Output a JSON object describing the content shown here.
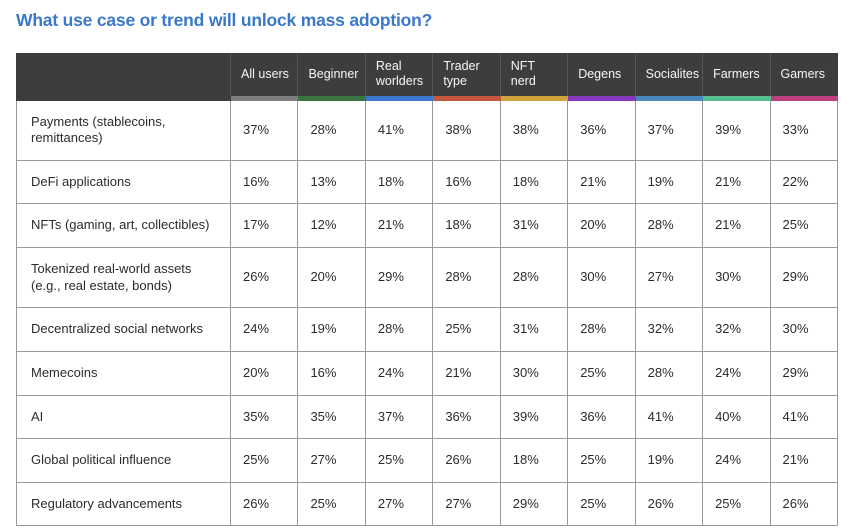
{
  "title": "What use case or trend will unlock mass adoption?",
  "colors": {
    "title_text": "#3a78c8",
    "header_background": "#3d3d3d",
    "header_text": "#f7f7f7",
    "cell_border": "#999999",
    "body_text": "#2b2b2b"
  },
  "chart_data": {
    "type": "table",
    "title": "What use case or trend will unlock mass adoption?",
    "unit": "%",
    "corner_label": "",
    "columns": [
      {
        "label": "All users",
        "accent_color": "#7d7d7d"
      },
      {
        "label": "Beginner",
        "accent_color": "#3a7340"
      },
      {
        "label": "Real worlders",
        "accent_color": "#3c78cd"
      },
      {
        "label": "Trader type",
        "accent_color": "#c5573f"
      },
      {
        "label": "NFT nerd",
        "accent_color": "#cfa43a"
      },
      {
        "label": "Degens",
        "accent_color": "#8639bd"
      },
      {
        "label": "Socialites",
        "accent_color": "#4a87bb"
      },
      {
        "label": "Farmers",
        "accent_color": "#56bd8e"
      },
      {
        "label": "Gamers",
        "accent_color": "#bf3f7c"
      }
    ],
    "rows": [
      {
        "label": "Payments (stablecoins, remittances)",
        "values": [
          37,
          28,
          41,
          38,
          38,
          36,
          37,
          39,
          33
        ]
      },
      {
        "label": "DeFi applications",
        "values": [
          16,
          13,
          18,
          16,
          18,
          21,
          19,
          21,
          22
        ]
      },
      {
        "label": "NFTs (gaming, art, collectibles)",
        "values": [
          17,
          12,
          21,
          18,
          31,
          20,
          28,
          21,
          25
        ]
      },
      {
        "label": "Tokenized real-world assets (e.g., real estate, bonds)",
        "values": [
          26,
          20,
          29,
          28,
          28,
          30,
          27,
          30,
          29
        ]
      },
      {
        "label": "Decentralized social networks",
        "values": [
          24,
          19,
          28,
          25,
          31,
          28,
          32,
          32,
          30
        ]
      },
      {
        "label": "Memecoins",
        "values": [
          20,
          16,
          24,
          21,
          30,
          25,
          28,
          24,
          29
        ]
      },
      {
        "label": "AI",
        "values": [
          35,
          35,
          37,
          36,
          39,
          36,
          41,
          40,
          41
        ]
      },
      {
        "label": "Global political influence",
        "values": [
          25,
          27,
          25,
          26,
          18,
          25,
          19,
          24,
          21
        ]
      },
      {
        "label": "Regulatory advancements",
        "values": [
          26,
          25,
          27,
          27,
          29,
          25,
          26,
          25,
          26
        ]
      }
    ]
  }
}
